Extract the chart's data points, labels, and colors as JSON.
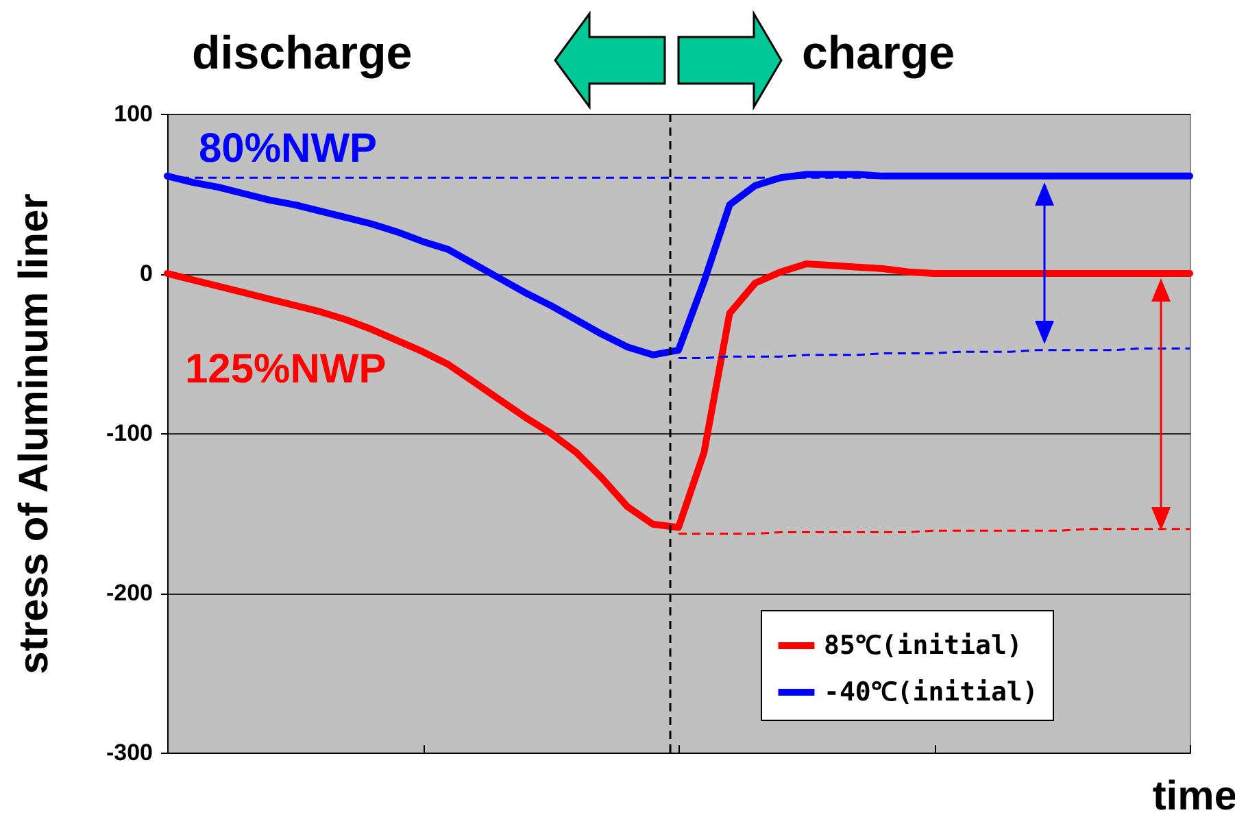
{
  "chart_data": {
    "type": "line",
    "xlabel": "time",
    "ylabel": "stress of Aluminum liner",
    "categories": [
      null,
      null,
      null,
      null,
      null,
      null,
      null,
      null,
      null,
      null,
      null,
      null,
      null,
      null,
      null,
      null,
      null,
      null,
      null,
      null,
      null,
      null,
      null,
      null,
      null,
      null,
      null,
      null,
      null,
      null,
      null,
      null,
      null,
      null,
      null,
      null,
      null,
      null,
      null,
      null,
      null
    ],
    "ylim": [
      -300,
      100
    ],
    "yticks": [
      -300,
      -200,
      -100,
      0,
      100
    ],
    "grid": "y",
    "tick_labels": "y",
    "legend": "bottom right",
    "line_style": "solid",
    "series": [
      {
        "name": "85℃(initial)",
        "color": "#ff0000",
        "values": [
          0,
          -4,
          -8,
          -12,
          -16,
          -20,
          -24,
          -29,
          -35,
          -42,
          -49,
          -57,
          -68,
          -79,
          -90,
          -100,
          -112,
          -128,
          -146,
          -157,
          -159,
          -112,
          -25,
          -6,
          1,
          6,
          5,
          4,
          3,
          1,
          0,
          0,
          0,
          0,
          0,
          0,
          0,
          0,
          0,
          0,
          0
        ]
      },
      {
        "name": "-40℃(initial)",
        "color": "#0000ff",
        "values": [
          61,
          57,
          54,
          50,
          46,
          43,
          39,
          35,
          31,
          26,
          20,
          15,
          6,
          -3,
          -12,
          -20,
          -29,
          -38,
          -46,
          -51,
          -48,
          -5,
          43,
          55,
          60,
          62,
          62,
          62,
          61,
          61,
          61,
          61,
          61,
          61,
          61,
          61,
          61,
          61,
          61,
          61,
          61
        ]
      },
      {
        "type": "line",
        "line_style": "dashed",
        "color": "#0000ff",
        "values": [
          null,
          null,
          null,
          null,
          null,
          null,
          null,
          null,
          null,
          null,
          null,
          null,
          null,
          null,
          null,
          null,
          null,
          null,
          null,
          null,
          -53,
          -53,
          -52,
          -52,
          -52,
          -51,
          -51,
          -51,
          -50,
          -50,
          -50,
          -49,
          -49,
          -49,
          -48,
          -48,
          -48,
          -48,
          -47,
          -47,
          -47
        ]
      },
      {
        "type": "line",
        "line_style": "dashed",
        "color": "#ff0000",
        "values": [
          null,
          null,
          null,
          null,
          null,
          null,
          null,
          null,
          null,
          null,
          null,
          null,
          null,
          null,
          null,
          null,
          null,
          null,
          null,
          null,
          -163,
          -163,
          -163,
          -163,
          -162,
          -162,
          -162,
          -162,
          -162,
          -162,
          -161,
          -161,
          -161,
          -161,
          -161,
          -161,
          -160,
          -160,
          -160,
          -160,
          -160
        ]
      }
    ],
    "ref_lines": [
      {
        "axis": "y",
        "value": 60,
        "color": "#0000ff",
        "line_style": "dashed"
      }
    ],
    "annotations": [
      "discharge",
      "charge",
      "80%NWP",
      "125%NWP"
    ]
  }
}
